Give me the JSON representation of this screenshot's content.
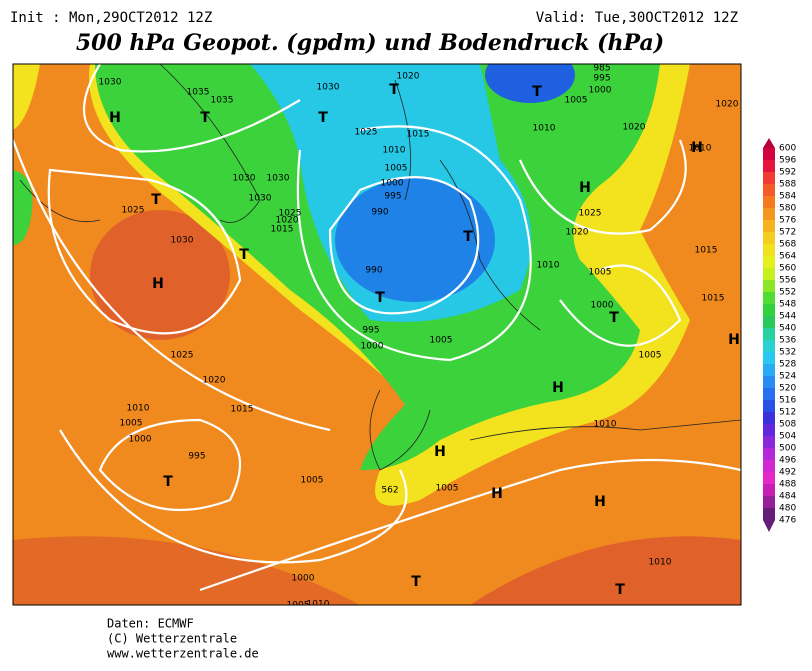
{
  "header": {
    "init": "Init : Mon,29OCT2012 12Z",
    "valid": "Valid: Tue,30OCT2012 12Z",
    "title": "500 hPa Geopot. (gpdm) und Bodendruck (hPa)"
  },
  "legend": {
    "levels": [
      600,
      596,
      592,
      588,
      584,
      580,
      576,
      572,
      568,
      564,
      560,
      556,
      552,
      548,
      544,
      540,
      536,
      532,
      528,
      524,
      520,
      516,
      512,
      508,
      504,
      500,
      496,
      492,
      488,
      484,
      480,
      476
    ]
  },
  "map": {
    "isobar_labels": [
      "1030",
      "1035",
      "1035",
      "1030",
      "1020",
      "985",
      "995",
      "1000",
      "1005",
      "1010",
      "1020",
      "1020",
      "1010",
      "1025",
      "1015",
      "1010",
      "1005",
      "1000",
      "995",
      "990",
      "1030",
      "1030",
      "1030",
      "1025",
      "1020",
      "1015",
      "1025",
      "1030",
      "1025",
      "1020",
      "1015",
      "1010",
      "1005",
      "1015",
      "1000",
      "990",
      "995",
      "1000",
      "1005",
      "1005",
      "1025",
      "1020",
      "1015",
      "1010",
      "1005",
      "1000",
      "995",
      "1010",
      "1005",
      "1005",
      "1000",
      "1005",
      "1010",
      "1010",
      "562"
    ],
    "pressure_centers": [
      "H",
      "T",
      "T",
      "T",
      "T",
      "H",
      "H",
      "T",
      "T",
      "H",
      "T",
      "T",
      "T",
      "H",
      "H",
      "H",
      "T",
      "H",
      "H",
      "T",
      "T"
    ]
  },
  "footer": [
    "Daten: ECMWF",
    "(C) Wetterzentrale",
    "www.wetterzentrale.de"
  ]
}
